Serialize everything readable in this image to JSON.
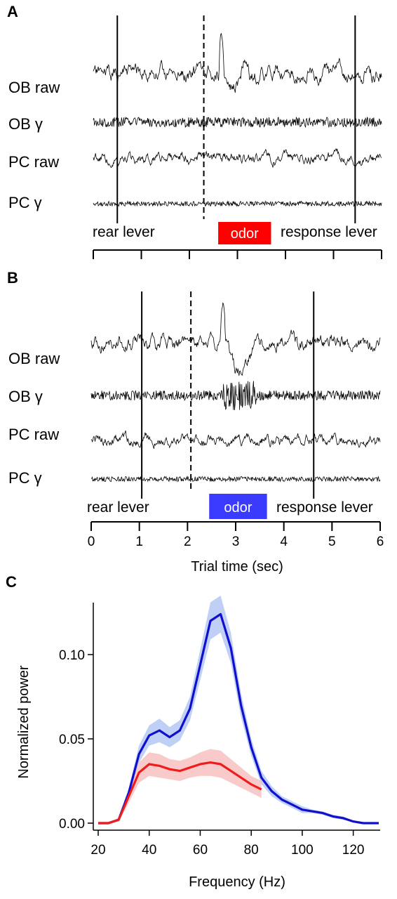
{
  "panels": {
    "A": {
      "letter": "A",
      "traces": [
        {
          "label": "OB raw",
          "kind": "raw"
        },
        {
          "label": "OB γ",
          "kind": "gamma"
        },
        {
          "label": "PC raw",
          "kind": "raw"
        },
        {
          "label": "PC γ",
          "kind": "gamma_small"
        }
      ],
      "rear_lever_label": "rear lever",
      "response_lever_label": "response lever",
      "odor_label": "odor",
      "odor_color": "#ff0000",
      "odor_start_sec": 2.6,
      "odor_end_sec": 3.7,
      "rear_lever_sec": 0.5,
      "dashed_line_sec": 2.3,
      "response_lever_sec": 5.45
    },
    "B": {
      "letter": "B",
      "traces": [
        {
          "label": "OB raw",
          "kind": "raw"
        },
        {
          "label": "OB γ",
          "kind": "gamma"
        },
        {
          "label": "PC raw",
          "kind": "raw"
        },
        {
          "label": "PC γ",
          "kind": "gamma_small"
        }
      ],
      "rear_lever_label": "rear lever",
      "response_lever_label": "response lever",
      "odor_label": "odor",
      "odor_color": "#3b3bff",
      "odor_start_sec": 2.45,
      "odor_end_sec": 3.65,
      "rear_lever_sec": 1.05,
      "dashed_line_sec": 2.07,
      "response_lever_sec": 4.62,
      "x_axis": {
        "label": "Trial time (sec)",
        "ticks": [
          0,
          1,
          2,
          3,
          4,
          5,
          6
        ],
        "tick_labels": [
          "0",
          "1",
          "2",
          "3",
          "4",
          "5",
          "6"
        ],
        "range": [
          0,
          6
        ]
      }
    },
    "C": {
      "letter": "C",
      "chart_data": {
        "type": "line",
        "xlabel": "Frequency (Hz)",
        "ylabel": "Normalized power",
        "xlim": [
          20,
          130
        ],
        "ylim": [
          0,
          0.13
        ],
        "x_ticks": [
          20,
          40,
          60,
          80,
          100,
          120
        ],
        "x_tick_labels": [
          "20",
          "40",
          "60",
          "80",
          "100",
          "120"
        ],
        "y_ticks": [
          0.0,
          0.05,
          0.1
        ],
        "y_tick_labels": [
          "0.00",
          "0.05",
          "0.10"
        ],
        "series": [
          {
            "color": "#1010cc",
            "band_color": "#a9bff2",
            "x": [
              20,
              24,
              28,
              32,
              36,
              40,
              44,
              48,
              52,
              56,
              60,
              64,
              68,
              72,
              76,
              80,
              84,
              88,
              92,
              96,
              100,
              104,
              108,
              112,
              116,
              120,
              124,
              130
            ],
            "y": [
              0.0,
              0.0,
              0.002,
              0.018,
              0.041,
              0.052,
              0.055,
              0.051,
              0.055,
              0.068,
              0.094,
              0.12,
              0.124,
              0.104,
              0.07,
              0.045,
              0.027,
              0.019,
              0.014,
              0.011,
              0.008,
              0.007,
              0.006,
              0.004,
              0.003,
              0.001,
              0.0,
              0.0
            ],
            "band": [
              0.0,
              0.0,
              0.001,
              0.003,
              0.005,
              0.006,
              0.007,
              0.006,
              0.006,
              0.007,
              0.009,
              0.011,
              0.011,
              0.009,
              0.007,
              0.005,
              0.004,
              0.003,
              0.002,
              0.002,
              0.002,
              0.001,
              0.001,
              0.001,
              0.001,
              0.0,
              0.0,
              0.0
            ]
          },
          {
            "color": "#ee1c1c",
            "band_color": "#f7b8b8",
            "x": [
              20,
              24,
              28,
              32,
              36,
              40,
              44,
              48,
              52,
              56,
              60,
              64,
              68,
              72,
              76,
              80,
              84
            ],
            "y": [
              0.0,
              0.0,
              0.002,
              0.016,
              0.03,
              0.035,
              0.034,
              0.032,
              0.031,
              0.033,
              0.035,
              0.036,
              0.035,
              0.031,
              0.027,
              0.023,
              0.02
            ],
            "band": [
              0.0,
              0.0,
              0.001,
              0.004,
              0.006,
              0.007,
              0.007,
              0.006,
              0.006,
              0.006,
              0.007,
              0.008,
              0.008,
              0.007,
              0.006,
              0.005,
              0.005
            ]
          }
        ]
      }
    }
  }
}
